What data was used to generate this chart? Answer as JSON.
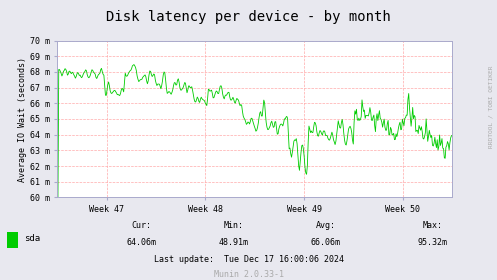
{
  "title": "Disk latency per device - by month",
  "ylabel": "Average IO Wait (seconds)",
  "background_color": "#e8e8ef",
  "plot_bg_color": "#ffffff",
  "grid_color": "#ffaaaa",
  "line_color": "#00cc00",
  "ylim_min": 60,
  "ylim_max": 70,
  "ytick_labels": [
    "60 m",
    "61 m",
    "62 m",
    "63 m",
    "64 m",
    "65 m",
    "66 m",
    "67 m",
    "68 m",
    "69 m",
    "70 m"
  ],
  "ytick_values": [
    60,
    61,
    62,
    63,
    64,
    65,
    66,
    67,
    68,
    69,
    70
  ],
  "week_labels": [
    "Week 47",
    "Week 48",
    "Week 49",
    "Week 50"
  ],
  "legend_label": "sda",
  "legend_color": "#00cc00",
  "cur_label": "Cur:",
  "cur_value": "64.06m",
  "min_label": "Min:",
  "min_value": "48.91m",
  "avg_label": "Avg:",
  "avg_value": "66.06m",
  "max_label": "Max:",
  "max_value": "95.32m",
  "last_update": "Last update:  Tue Dec 17 16:00:06 2024",
  "munin_label": "Munin 2.0.33-1",
  "rrdtool_label": "RRDTOOL / TOBI OETIKER",
  "title_fontsize": 10,
  "axis_fontsize": 6,
  "ylabel_fontsize": 6,
  "legend_fontsize": 6.5,
  "footer_fontsize": 6,
  "spine_color": "#aaaacc"
}
